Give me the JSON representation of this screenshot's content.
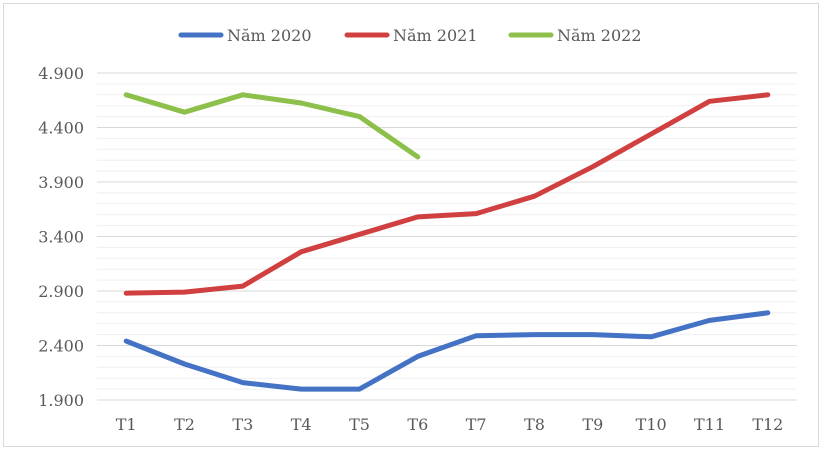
{
  "chart_data": {
    "type": "line",
    "title": "",
    "xlabel": "",
    "ylabel": "",
    "categories": [
      "T1",
      "T2",
      "T3",
      "T4",
      "T5",
      "T6",
      "T7",
      "T8",
      "T9",
      "T10",
      "T11",
      "T12"
    ],
    "y_ticks": [
      "1.900",
      "2.400",
      "2.900",
      "3.400",
      "3.900",
      "4.400",
      "4.900"
    ],
    "y_tick_values": [
      1900,
      2400,
      2900,
      3400,
      3900,
      4400,
      4900
    ],
    "ylim": [
      1900,
      4900
    ],
    "minor_grid_step": 100,
    "grid": true,
    "legend_position": "top",
    "series": [
      {
        "name": "Năm 2020",
        "color": "#4472c4",
        "values": [
          2440,
          2230,
          2060,
          2000,
          2000,
          2300,
          2490,
          2500,
          2500,
          2480,
          2630,
          2700
        ]
      },
      {
        "name": "Năm 2021",
        "color": "#d04040",
        "values": [
          2880,
          2890,
          2945,
          3260,
          3420,
          3580,
          3610,
          3770,
          4040,
          4340,
          4640,
          4700
        ]
      },
      {
        "name": "Năm 2022",
        "color": "#8cc04a",
        "values": [
          4700,
          4540,
          4700,
          4625,
          4500,
          4130,
          null,
          null,
          null,
          null,
          null,
          null
        ]
      }
    ]
  }
}
